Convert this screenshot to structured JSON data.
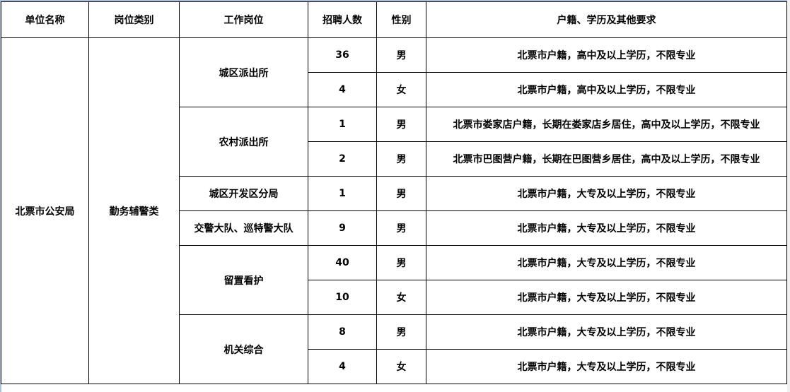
{
  "headers": [
    "单位名称",
    "岗位类别",
    "工作岗位",
    "招聘人数",
    "性别",
    "户籍、学历及其他要求"
  ],
  "unit": "北票市公安局",
  "category": "勤务辅警类",
  "positions": [
    {
      "name": "城区派出所",
      "rows": [
        {
          "count": "36",
          "gender": "男",
          "req": "北票市户籍，高中及以上学历，不限专业"
        },
        {
          "count": "4",
          "gender": "女",
          "req": "北票市户籍，高中及以上学历，不限专业"
        }
      ]
    },
    {
      "name": "农村派出所",
      "rows": [
        {
          "count": "1",
          "gender": "男",
          "req": "北票市娄家店户籍，长期在娄家店乡居住，高中及以上学历，不限专业"
        },
        {
          "count": "2",
          "gender": "男",
          "req": "北票市巴图营户籍，长期在巴图营乡居住，高中及以上学历，不限专业"
        }
      ]
    },
    {
      "name": "城区开发区分局",
      "rows": [
        {
          "count": "1",
          "gender": "男",
          "req": "北票市户籍，大专及以上学历，不限专业"
        }
      ]
    },
    {
      "name": "交警大队、巡特警大队",
      "rows": [
        {
          "count": "9",
          "gender": "男",
          "req": "北票市户籍，大专及以上学历，不限专业"
        }
      ]
    },
    {
      "name": "留置看护",
      "rows": [
        {
          "count": "40",
          "gender": "男",
          "req": "北票市户籍，大专及以上学历，不限专业"
        },
        {
          "count": "10",
          "gender": "女",
          "req": "北票市户籍，大专及以上学历，不限专业"
        }
      ]
    },
    {
      "name": "机关综合",
      "rows": [
        {
          "count": "8",
          "gender": "男",
          "req": "北票市户籍，大专及以上学历，不限专业"
        },
        {
          "count": "4",
          "gender": "女",
          "req": "北票市户籍，大专及以上学历，不限专业"
        }
      ]
    }
  ]
}
